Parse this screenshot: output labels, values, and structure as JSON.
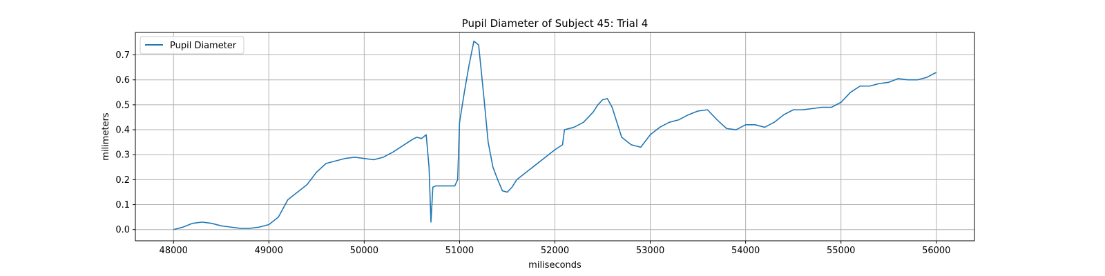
{
  "chart_data": {
    "type": "line",
    "title": "Pupil Diameter of Subject 45: Trial 4",
    "xlabel": "miliseconds",
    "ylabel": "milimeters",
    "xlim": [
      47600,
      56400
    ],
    "ylim": [
      -0.045,
      0.79
    ],
    "xticks": [
      48000,
      49000,
      50000,
      51000,
      52000,
      53000,
      54000,
      55000,
      56000
    ],
    "yticks": [
      0.0,
      0.1,
      0.2,
      0.3,
      0.4,
      0.5,
      0.6,
      0.7
    ],
    "ytick_labels": [
      "0.0",
      "0.1",
      "0.2",
      "0.3",
      "0.4",
      "0.5",
      "0.6",
      "0.7"
    ],
    "grid": true,
    "legend_position": "top-left",
    "series": [
      {
        "name": "Pupil Diameter",
        "color": "#1f77b4",
        "x": [
          48000,
          48100,
          48200,
          48300,
          48400,
          48500,
          48600,
          48700,
          48800,
          48900,
          49000,
          49100,
          49200,
          49300,
          49400,
          49500,
          49600,
          49700,
          49800,
          49900,
          50000,
          50100,
          50200,
          50300,
          50400,
          50500,
          50550,
          50600,
          50650,
          50680,
          50700,
          50720,
          50750,
          50800,
          50900,
          50950,
          50980,
          51000,
          51050,
          51100,
          51150,
          51200,
          51250,
          51300,
          51350,
          51400,
          51450,
          51500,
          51550,
          51600,
          51700,
          51800,
          51900,
          52000,
          52080,
          52100,
          52200,
          52300,
          52400,
          52450,
          52500,
          52550,
          52600,
          52650,
          52700,
          52800,
          52900,
          53000,
          53100,
          53200,
          53300,
          53400,
          53500,
          53600,
          53700,
          53800,
          53900,
          54000,
          54100,
          54200,
          54300,
          54400,
          54500,
          54600,
          54700,
          54800,
          54900,
          55000,
          55100,
          55200,
          55300,
          55400,
          55500,
          55600,
          55700,
          55800,
          55900,
          56000
        ],
        "y": [
          0.0,
          0.01,
          0.025,
          0.03,
          0.025,
          0.015,
          0.01,
          0.005,
          0.005,
          0.01,
          0.02,
          0.05,
          0.12,
          0.15,
          0.18,
          0.23,
          0.265,
          0.275,
          0.285,
          0.29,
          0.285,
          0.28,
          0.29,
          0.31,
          0.335,
          0.36,
          0.37,
          0.365,
          0.38,
          0.25,
          0.03,
          0.17,
          0.175,
          0.175,
          0.175,
          0.175,
          0.2,
          0.43,
          0.55,
          0.66,
          0.755,
          0.74,
          0.55,
          0.35,
          0.25,
          0.2,
          0.155,
          0.15,
          0.17,
          0.2,
          0.23,
          0.26,
          0.29,
          0.32,
          0.34,
          0.4,
          0.41,
          0.43,
          0.47,
          0.5,
          0.52,
          0.525,
          0.49,
          0.43,
          0.37,
          0.34,
          0.33,
          0.38,
          0.41,
          0.43,
          0.44,
          0.46,
          0.475,
          0.48,
          0.44,
          0.405,
          0.4,
          0.42,
          0.42,
          0.41,
          0.43,
          0.46,
          0.48,
          0.48,
          0.485,
          0.49,
          0.49,
          0.51,
          0.55,
          0.575,
          0.575,
          0.585,
          0.59,
          0.605,
          0.6,
          0.6,
          0.61,
          0.63
        ]
      }
    ]
  }
}
